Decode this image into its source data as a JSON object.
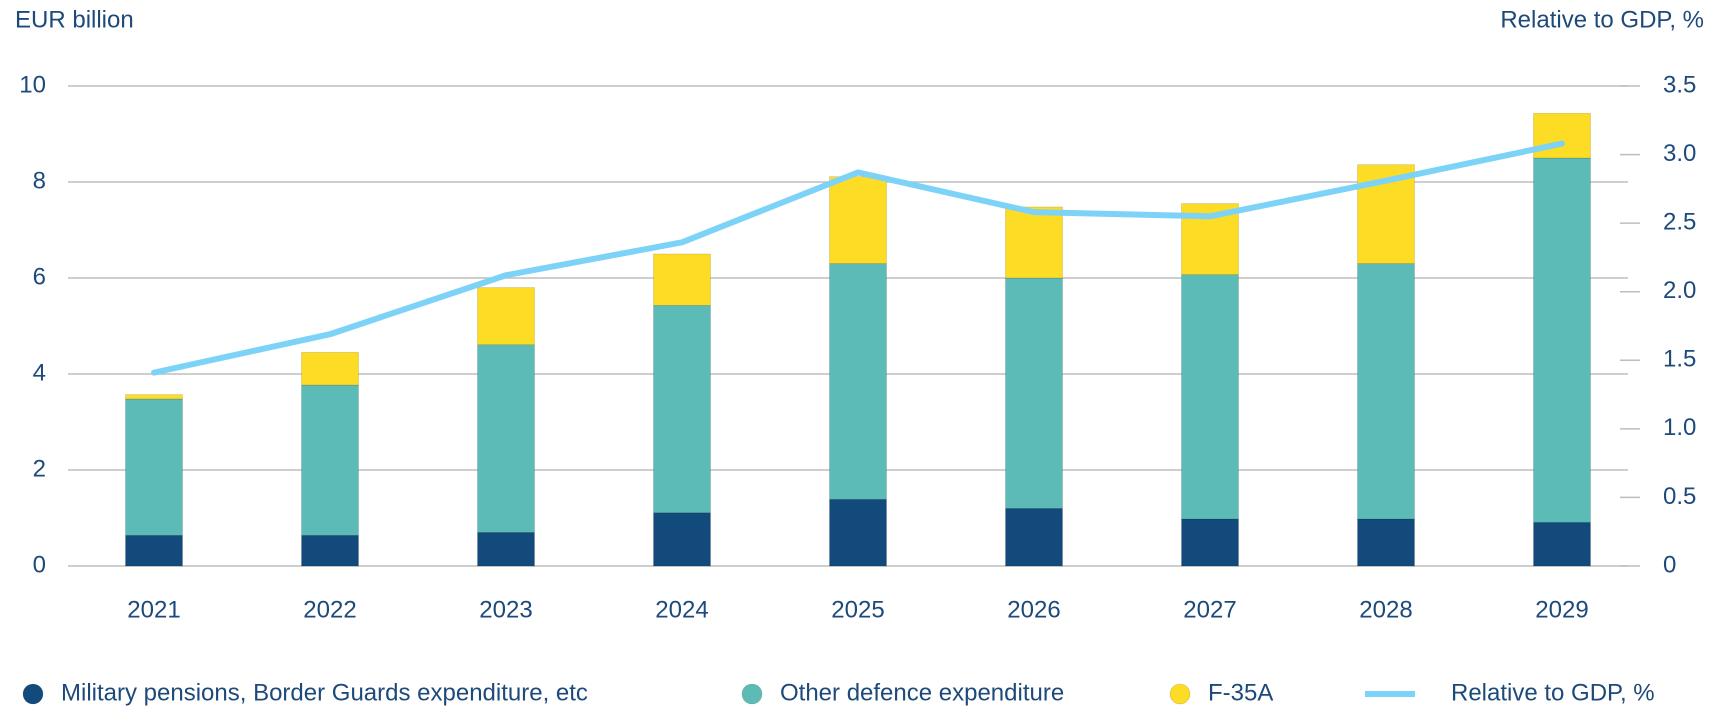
{
  "chart_data": {
    "type": "bar",
    "ylabel": "EUR billion",
    "y2label": "Relative to GDP, %",
    "categories": [
      "2021",
      "2022",
      "2023",
      "2024",
      "2025",
      "2026",
      "2027",
      "2028",
      "2029"
    ],
    "stacked": true,
    "series": [
      {
        "name": "Military pensions, Border Guards expenditure, etc",
        "color": "#134a7c",
        "type": "bar",
        "values": [
          0.64,
          0.64,
          0.7,
          1.11,
          1.39,
          1.2,
          0.98,
          0.98,
          0.91
        ]
      },
      {
        "name": "Other defence expenditure",
        "color": "#5cbbb6",
        "type": "bar",
        "values": [
          2.84,
          3.13,
          3.91,
          4.32,
          4.91,
          4.8,
          5.09,
          5.32,
          7.59
        ]
      },
      {
        "name": "F-35A",
        "color": "#fddc25",
        "type": "bar",
        "values": [
          0.09,
          0.68,
          1.19,
          1.07,
          1.81,
          1.48,
          1.48,
          2.06,
          0.93
        ]
      },
      {
        "name": "Relative to GDP, %",
        "color": "#7dd3f7",
        "type": "line",
        "axis": "y2",
        "values": [
          1.41,
          1.69,
          2.12,
          2.36,
          2.87,
          2.58,
          2.55,
          2.81,
          3.08
        ]
      }
    ],
    "ylim": [
      0,
      10
    ],
    "yticks": [
      0,
      2,
      4,
      6,
      8,
      10
    ],
    "y2lim": [
      0,
      3.5
    ],
    "y2ticks": [
      0,
      0.5,
      {
        "value": 1,
        "label": "1.0"
      },
      1.5,
      {
        "value": 2,
        "label": "2.0"
      },
      2.5,
      {
        "value": 3,
        "label": "3.0"
      },
      3.5
    ],
    "grid": true,
    "legend": "bottom"
  }
}
